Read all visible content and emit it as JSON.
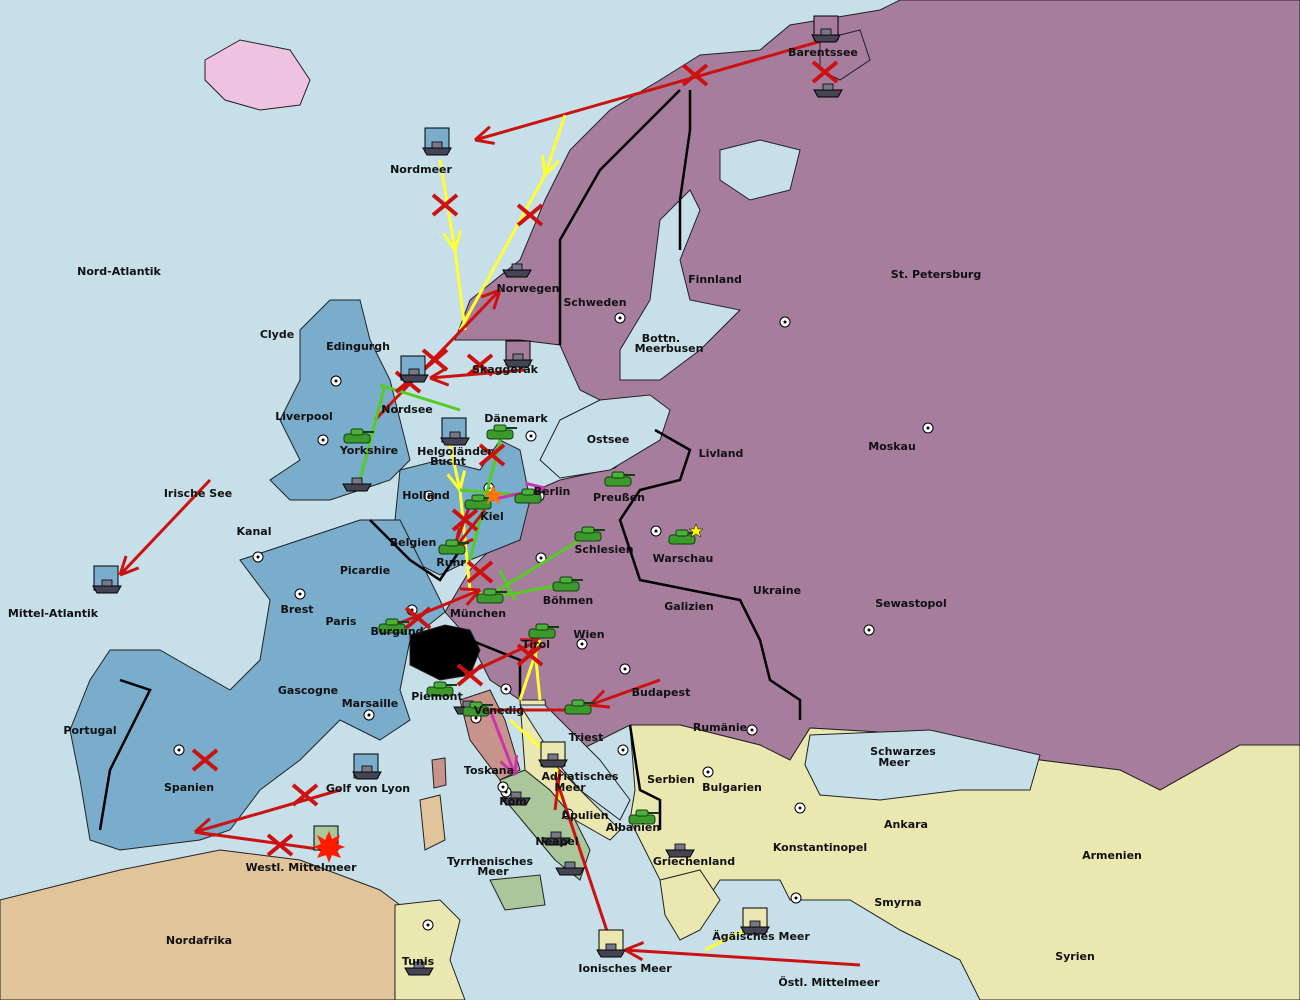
{
  "colors": {
    "sea": "#c6dfe9",
    "russia_germany_austria": "#a67d9c",
    "england_france": "#7aaccb",
    "turkey_balkans": "#ebe7b0",
    "africa": "#e2c49b",
    "italy_south": "#a9c79a",
    "tuscany": "#c8938a",
    "iceland": "#f0c2e2",
    "switzerland": "#000000",
    "order_attack": "#cc1111",
    "order_yellow": "#ffff33",
    "order_green": "#55cc22",
    "order_magenta": "#cc33aa"
  },
  "provinces": [
    "Barentssee",
    "Nordmeer",
    "Nord-Atlantik",
    "St. Petersburg",
    "Finnland",
    "Schweden",
    "Norwegen",
    "Bottn.",
    "Meerbusen",
    "Clyde",
    "Edingurgh",
    "Skaggerak",
    "Nordsee",
    "Liverpool",
    "Dänemark",
    "Ostsee",
    "Yorkshire",
    "Helgoländer",
    "Bucht",
    "Livland",
    "Moskau",
    "Irische See",
    "Holland",
    "Berlin",
    "Preußen",
    "Kiel",
    "Kanal",
    "Belgien",
    "Schlesien",
    "Warschau",
    "Ruhr",
    "Picardie",
    "Mittel-Atlantik",
    "Böhmen",
    "Galizien",
    "Ukraine",
    "Sewastopol",
    "Brest",
    "Paris",
    "München",
    "Burgund",
    "Wien",
    "Tirol",
    "Gascogne",
    "Budapest",
    "Piemont",
    "Marsaille",
    "Venedig",
    "Portugal",
    "Rumänie",
    "Triest",
    "Toskana",
    "Schwarzes",
    "Meer",
    "Spanien",
    "Adriatisches",
    "Meer",
    "Serbien",
    "Golf von Lyon",
    "Bulgarien",
    "Rom",
    "Apulien",
    "Ankara",
    "Albanien",
    "Konstantinopel",
    "Armenien",
    "Neapel",
    "Westl. Mittelmeer",
    "Griechenland",
    "Tyrrhenisches",
    "Meer",
    "Smyrna",
    "Nordafrika",
    "Ägäisches Meer",
    "Syrien",
    "Tunis",
    "Ionisches Meer",
    "Östl. Mittelmeer"
  ]
}
